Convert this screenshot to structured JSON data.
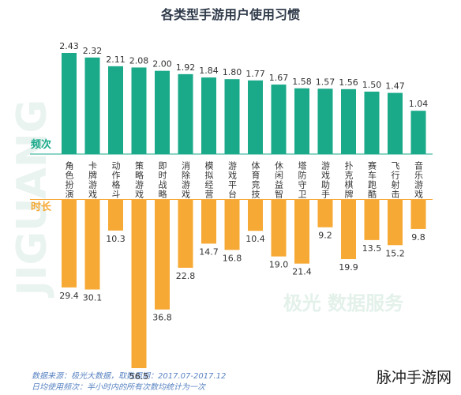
{
  "chart_data": [
    {
      "type": "bar",
      "title": "各类型手游用户使用习惯",
      "label": "频次",
      "color": "#1aaa8a",
      "direction": "up",
      "categories": [
        "角色扮演",
        "卡牌游戏",
        "动作格斗",
        "策略游戏",
        "即时战略",
        "消除游戏",
        "模拟经营",
        "游戏平台",
        "体育竞技",
        "休闲益智",
        "塔防守卫",
        "游戏助手",
        "扑克棋牌",
        "赛车跑酷",
        "飞行射击",
        "音乐游戏"
      ],
      "values": [
        2.43,
        2.32,
        2.11,
        2.08,
        2.0,
        1.92,
        1.84,
        1.8,
        1.77,
        1.67,
        1.58,
        1.57,
        1.56,
        1.5,
        1.47,
        1.04
      ],
      "value_labels": [
        "2.43",
        "2.32",
        "2.11",
        "2.08",
        "2.00",
        "1.92",
        "1.84",
        "1.80",
        "1.77",
        "1.67",
        "1.58",
        "1.57",
        "1.56",
        "1.50",
        "1.47",
        "1.04"
      ]
    },
    {
      "type": "bar",
      "label": "时长",
      "color": "#f7a935",
      "direction": "down",
      "values": [
        29.4,
        30.1,
        10.3,
        56.5,
        36.8,
        22.8,
        14.7,
        16.8,
        10.4,
        19.0,
        21.4,
        9.2,
        19.9,
        13.5,
        15.2,
        9.8
      ],
      "value_labels": [
        "29.4",
        "30.1",
        "10.3",
        "56.5",
        "36.8",
        "22.8",
        "14.7",
        "16.8",
        "10.4",
        "19.0",
        "21.4",
        "9.2",
        "19.9",
        "13.5",
        "15.2",
        "9.8"
      ]
    }
  ],
  "footnotes": [
    "数据来源：极光大数据，取数周期：2017.07-2017.12",
    "日均使用频次：半小时内的所有次数均统计为一次"
  ],
  "watermarks": [
    "JIGUANG",
    "极光 数据服务",
    "脉冲手游网"
  ]
}
